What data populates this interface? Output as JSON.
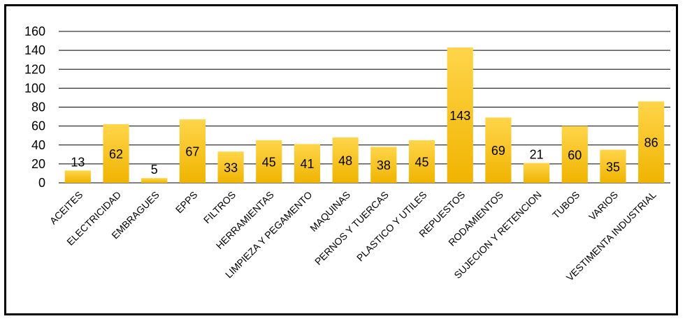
{
  "chart_data": {
    "type": "bar",
    "categories": [
      "ACEITES",
      "ELECTRICIDAD",
      "EMBRAGUES",
      "EPPS",
      "FILTROS",
      "HERRAMIENTAS",
      "LIMPIEZA Y PEGAMENTO",
      "MAQUINAS",
      "PERNOS Y TUERCAS",
      "PLASTICO Y UTILES",
      "REPUESTOS",
      "RODAMIENTOS",
      "SUJECION Y RETENCION",
      "TUBOS",
      "VARIOS",
      "VESTIMENTA INDUSTRIAL"
    ],
    "values": [
      13,
      62,
      5,
      67,
      33,
      45,
      41,
      48,
      38,
      45,
      143,
      69,
      21,
      60,
      35,
      86
    ],
    "data_labels": [
      "13",
      "62",
      "5",
      "67",
      "33",
      "45",
      "41",
      "48",
      "38",
      "45",
      "143",
      "69",
      "21",
      "60",
      "35",
      "86"
    ],
    "yticks": [
      "0",
      "20",
      "40",
      "60",
      "80",
      "100",
      "120",
      "140",
      "160"
    ],
    "ylim": [
      0,
      160
    ],
    "grid": true,
    "legend": "none",
    "colors": {
      "bar_top": "#ffd54a",
      "bar_bottom": "#f0b400",
      "grid": "#000000",
      "plot_background": "#ffffff"
    }
  }
}
